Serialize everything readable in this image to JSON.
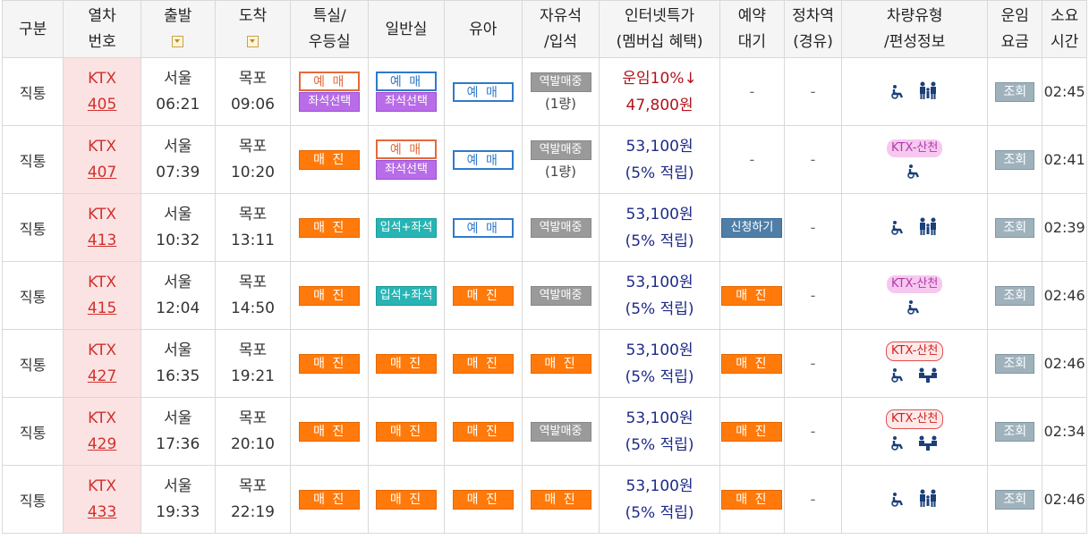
{
  "headers": {
    "type": "구분",
    "train_no": [
      "열차",
      "번호"
    ],
    "dep": "출발",
    "arr": "도착",
    "special": [
      "특실/",
      "우등실"
    ],
    "general": "일반실",
    "baby": "유아",
    "free": [
      "자유석",
      "/입석"
    ],
    "internet": [
      "인터넷특가",
      "(멤버십 혜택)"
    ],
    "reserve": [
      "예약",
      "대기"
    ],
    "stop": [
      "정차역",
      "(경유)"
    ],
    "car": [
      "차량유형",
      "/편성정보"
    ],
    "fare": [
      "운임",
      "요금"
    ],
    "time": [
      "소요",
      "시간"
    ]
  },
  "rows": [
    {
      "kind": "직통",
      "cls": "KTX",
      "no": "405",
      "dep_st": "서울",
      "dep_t": "06:21",
      "arr_st": "목포",
      "arr_t": "09:06",
      "special": [
        "예 매",
        "좌석선택"
      ],
      "general": [
        "예 매",
        "좌석선택"
      ],
      "baby": "예 매",
      "free": [
        "역발매중",
        "(1량)"
      ],
      "net": [
        "운임10%↓",
        "47,800원"
      ],
      "reserve": "-",
      "stop": "-",
      "car_tag": "",
      "fare": "조회",
      "dur": "02:45"
    },
    {
      "kind": "직통",
      "cls": "KTX",
      "no": "407",
      "dep_st": "서울",
      "dep_t": "07:39",
      "arr_st": "목포",
      "arr_t": "10:20",
      "special": [
        "매 진"
      ],
      "general": [
        "예 매",
        "좌석선택"
      ],
      "baby": "예 매",
      "free": [
        "역발매중",
        "(1량)"
      ],
      "net": [
        "53,100원",
        "(5% 적립)"
      ],
      "reserve": "-",
      "stop": "-",
      "car_tag": "KTX-산천",
      "fare": "조회",
      "dur": "02:41"
    },
    {
      "kind": "직통",
      "cls": "KTX",
      "no": "413",
      "dep_st": "서울",
      "dep_t": "10:32",
      "arr_st": "목포",
      "arr_t": "13:11",
      "special": [
        "매 진"
      ],
      "general": [
        "입석+좌석"
      ],
      "baby": "예 매",
      "free": [
        "역발매중"
      ],
      "net": [
        "53,100원",
        "(5% 적립)"
      ],
      "reserve": "신청하기",
      "stop": "-",
      "car_tag": "",
      "fare": "조회",
      "dur": "02:39"
    },
    {
      "kind": "직통",
      "cls": "KTX",
      "no": "415",
      "dep_st": "서울",
      "dep_t": "12:04",
      "arr_st": "목포",
      "arr_t": "14:50",
      "special": [
        "매 진"
      ],
      "general": [
        "입석+좌석"
      ],
      "baby": "매 진",
      "free": [
        "역발매중"
      ],
      "net": [
        "53,100원",
        "(5% 적립)"
      ],
      "reserve": "매 진",
      "stop": "-",
      "car_tag": "KTX-산천",
      "fare": "조회",
      "dur": "02:46"
    },
    {
      "kind": "직통",
      "cls": "KTX",
      "no": "427",
      "dep_st": "서울",
      "dep_t": "16:35",
      "arr_st": "목포",
      "arr_t": "19:21",
      "special": [
        "매 진"
      ],
      "general": [
        "매 진"
      ],
      "baby": "매 진",
      "free": [
        "매 진"
      ],
      "net": [
        "53,100원",
        "(5% 적립)"
      ],
      "reserve": "매 진",
      "stop": "-",
      "car_tag": "KTX-산천",
      "fare": "조회",
      "dur": "02:46"
    },
    {
      "kind": "직통",
      "cls": "KTX",
      "no": "429",
      "dep_st": "서울",
      "dep_t": "17:36",
      "arr_st": "목포",
      "arr_t": "20:10",
      "special": [
        "매 진"
      ],
      "general": [
        "매 진"
      ],
      "baby": "매 진",
      "free": [
        "역발매중"
      ],
      "net": [
        "53,100원",
        "(5% 적립)"
      ],
      "reserve": "매 진",
      "stop": "-",
      "car_tag": "KTX-산천",
      "fare": "조회",
      "dur": "02:34"
    },
    {
      "kind": "직통",
      "cls": "KTX",
      "no": "433",
      "dep_st": "서울",
      "dep_t": "19:33",
      "arr_st": "목포",
      "arr_t": "22:19",
      "special": [
        "매 진"
      ],
      "general": [
        "매 진"
      ],
      "baby": "매 진",
      "free": [
        "매 진"
      ],
      "net": [
        "53,100원",
        "(5% 적립)"
      ],
      "reserve": "매 진",
      "stop": "-",
      "car_tag": "",
      "fare": "조회",
      "dur": "02:46"
    }
  ],
  "colors": {
    "accent_red": "#d0312d",
    "price": "#1e2a88",
    "sold": "#ff7a0a"
  }
}
